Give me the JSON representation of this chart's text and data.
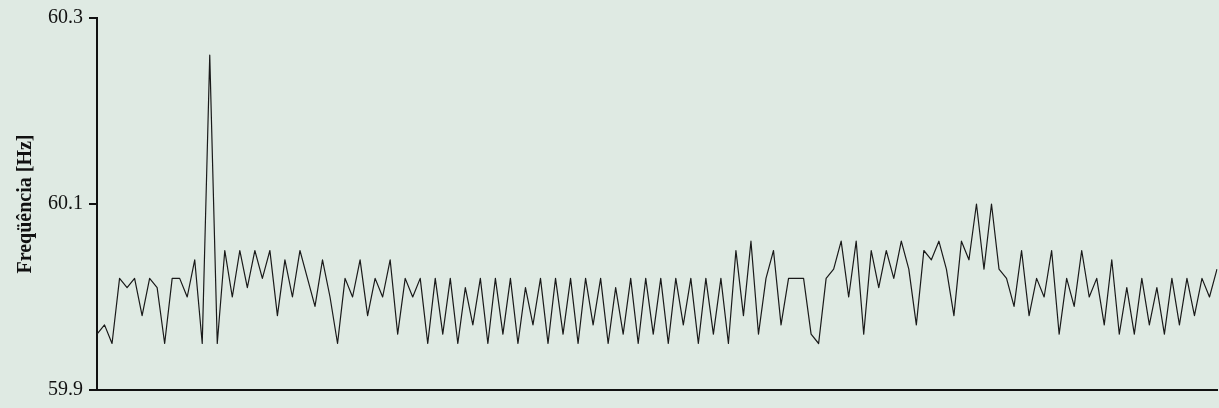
{
  "chart_data": {
    "type": "line",
    "ylabel": "Freqüência [Hz]",
    "ylim": [
      59.9,
      60.3
    ],
    "yticks": [
      59.9,
      60.1,
      60.3
    ],
    "grid": false,
    "legend": false,
    "tick_labels": "y",
    "marker": "none",
    "line_style": "solid",
    "categories": [
      null,
      null,
      null,
      null,
      null,
      null,
      null,
      null,
      null,
      null,
      null,
      null,
      null,
      null,
      null,
      null,
      null,
      null,
      null,
      null,
      null,
      null,
      null,
      null,
      null,
      null,
      null,
      null,
      null,
      null,
      null,
      null,
      null,
      null,
      null,
      null,
      null,
      null,
      null,
      null,
      null,
      null,
      null,
      null,
      null,
      null,
      null,
      null,
      null,
      null,
      null,
      null,
      null,
      null,
      null,
      null,
      null,
      null,
      null,
      null,
      null,
      null,
      null,
      null,
      null,
      null,
      null,
      null,
      null,
      null,
      null,
      null,
      null,
      null,
      null,
      null,
      null,
      null,
      null,
      null,
      null,
      null,
      null,
      null,
      null,
      null,
      null,
      null,
      null,
      null,
      null,
      null,
      null,
      null,
      null,
      null,
      null,
      null,
      null,
      null,
      null,
      null,
      null,
      null,
      null,
      null,
      null,
      null,
      null,
      null,
      null,
      null,
      null,
      null,
      null,
      null,
      null,
      null,
      null,
      null,
      null,
      null,
      null,
      null,
      null,
      null,
      null,
      null,
      null,
      null,
      null,
      null,
      null,
      null,
      null,
      null,
      null,
      null,
      null,
      null,
      null,
      null,
      null,
      null,
      null,
      null,
      null,
      null,
      null,
      null
    ],
    "series": [
      {
        "color": "#1a1a1a",
        "values": [
          59.96,
          59.97,
          59.95,
          60.02,
          60.01,
          60.02,
          59.98,
          60.02,
          60.01,
          59.95,
          60.02,
          60.02,
          60.0,
          60.04,
          59.95,
          60.26,
          59.95,
          60.05,
          60.0,
          60.05,
          60.01,
          60.05,
          60.02,
          60.05,
          59.98,
          60.04,
          60.0,
          60.05,
          60.02,
          59.99,
          60.04,
          60.0,
          59.95,
          60.02,
          60.0,
          60.04,
          59.98,
          60.02,
          60.0,
          60.04,
          59.96,
          60.02,
          60.0,
          60.02,
          59.95,
          60.02,
          59.96,
          60.02,
          59.95,
          60.01,
          59.97,
          60.02,
          59.95,
          60.02,
          59.96,
          60.02,
          59.95,
          60.01,
          59.97,
          60.02,
          59.95,
          60.02,
          59.96,
          60.02,
          59.95,
          60.02,
          59.97,
          60.02,
          59.95,
          60.01,
          59.96,
          60.02,
          59.95,
          60.02,
          59.96,
          60.02,
          59.95,
          60.02,
          59.97,
          60.02,
          59.95,
          60.02,
          59.96,
          60.02,
          59.95,
          60.05,
          59.98,
          60.06,
          59.96,
          60.02,
          60.05,
          59.97,
          60.02,
          60.02,
          60.02,
          59.96,
          59.95,
          60.02,
          60.03,
          60.06,
          60.0,
          60.06,
          59.96,
          60.05,
          60.01,
          60.05,
          60.02,
          60.06,
          60.03,
          59.97,
          60.05,
          60.04,
          60.06,
          60.03,
          59.98,
          60.06,
          60.04,
          60.1,
          60.03,
          60.1,
          60.03,
          60.02,
          59.99,
          60.05,
          59.98,
          60.02,
          60.0,
          60.05,
          59.96,
          60.02,
          59.99,
          60.05,
          60.0,
          60.02,
          59.97,
          60.04,
          59.96,
          60.01,
          59.96,
          60.02,
          59.97,
          60.01,
          59.96,
          60.02,
          59.97,
          60.02,
          59.98,
          60.02,
          60.0,
          60.03
        ]
      }
    ]
  }
}
